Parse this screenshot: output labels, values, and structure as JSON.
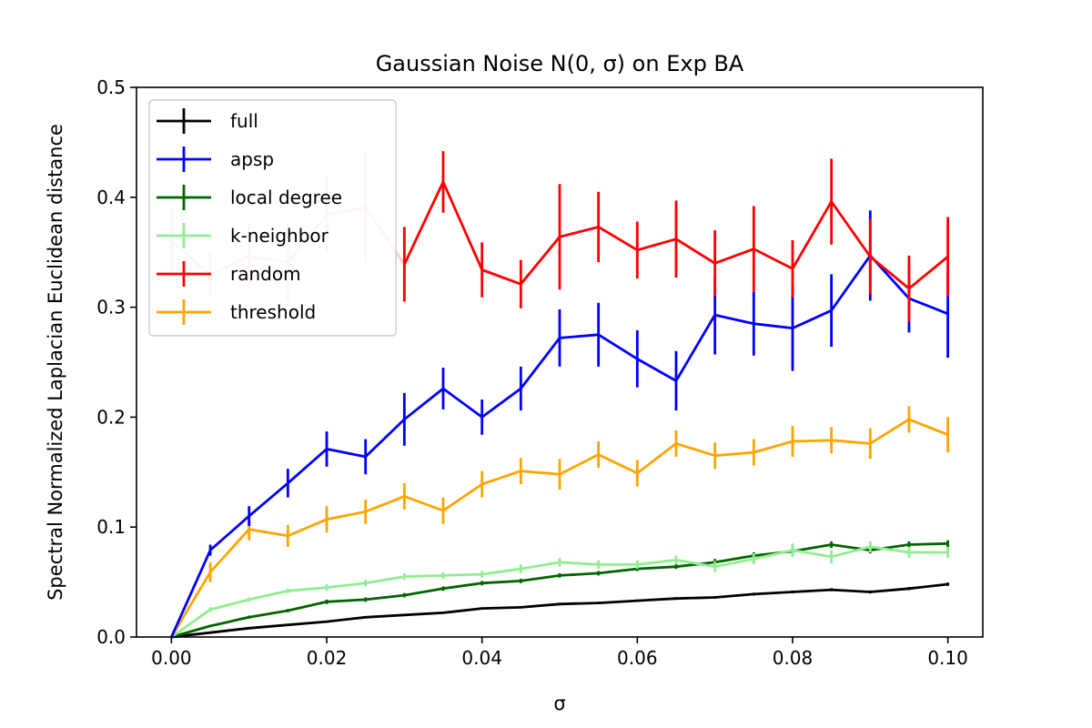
{
  "chart_data": {
    "type": "line",
    "title": "Gaussian Noise N(0, σ) on Exp BA",
    "xlabel": "σ",
    "ylabel": "Spectral Normalized Laplacian Euclidean distance",
    "xlim": [
      -0.0045,
      0.1045
    ],
    "ylim": [
      0,
      0.5
    ],
    "xticks": [
      0.0,
      0.02,
      0.04,
      0.06,
      0.08,
      0.1
    ],
    "xtick_labels": [
      "0.00",
      "0.02",
      "0.04",
      "0.06",
      "0.08",
      "0.10"
    ],
    "yticks": [
      0.0,
      0.1,
      0.2,
      0.3,
      0.4,
      0.5
    ],
    "ytick_labels": [
      "0.0",
      "0.1",
      "0.2",
      "0.3",
      "0.4",
      "0.5"
    ],
    "grid": false,
    "legend_position": "upper-left",
    "x": [
      0.0,
      0.005,
      0.01,
      0.015,
      0.02,
      0.025,
      0.03,
      0.035,
      0.04,
      0.045,
      0.05,
      0.055,
      0.06,
      0.065,
      0.07,
      0.075,
      0.08,
      0.085,
      0.09,
      0.095,
      0.1
    ],
    "series": [
      {
        "name": "full",
        "color": "#000000",
        "values": [
          0.0,
          0.004,
          0.008,
          0.011,
          0.014,
          0.018,
          0.02,
          0.022,
          0.026,
          0.027,
          0.03,
          0.031,
          0.033,
          0.035,
          0.036,
          0.039,
          0.041,
          0.043,
          0.041,
          0.044,
          0.048
        ],
        "errors": [
          0.0,
          0.0005,
          0.0006,
          0.0007,
          0.0008,
          0.0009,
          0.0009,
          0.001,
          0.001,
          0.001,
          0.0011,
          0.0011,
          0.0012,
          0.0012,
          0.0012,
          0.0013,
          0.0013,
          0.0014,
          0.0014,
          0.0014,
          0.0015
        ]
      },
      {
        "name": "apsp",
        "color": "#0000ff",
        "values": [
          0.0,
          0.079,
          0.11,
          0.14,
          0.171,
          0.164,
          0.198,
          0.226,
          0.2,
          0.226,
          0.272,
          0.275,
          0.253,
          0.233,
          0.293,
          0.285,
          0.281,
          0.297,
          0.347,
          0.308,
          0.294
        ],
        "errors": [
          0.0,
          0.005,
          0.009,
          0.013,
          0.016,
          0.016,
          0.024,
          0.019,
          0.016,
          0.02,
          0.026,
          0.029,
          0.026,
          0.027,
          0.036,
          0.029,
          0.039,
          0.033,
          0.041,
          0.031,
          0.04
        ]
      },
      {
        "name": "local degree",
        "color": "#006400",
        "values": [
          0.0,
          0.01,
          0.018,
          0.024,
          0.032,
          0.034,
          0.038,
          0.044,
          0.049,
          0.051,
          0.056,
          0.058,
          0.062,
          0.064,
          0.068,
          0.074,
          0.078,
          0.084,
          0.079,
          0.084,
          0.085
        ],
        "errors": [
          0.0,
          0.001,
          0.0015,
          0.0015,
          0.002,
          0.002,
          0.002,
          0.002,
          0.002,
          0.002,
          0.002,
          0.002,
          0.002,
          0.002,
          0.003,
          0.003,
          0.003,
          0.003,
          0.003,
          0.003,
          0.003
        ]
      },
      {
        "name": "k-neighbor",
        "color": "#90ee90",
        "values": [
          0.0,
          0.025,
          0.034,
          0.042,
          0.045,
          0.049,
          0.055,
          0.056,
          0.057,
          0.062,
          0.068,
          0.066,
          0.066,
          0.07,
          0.064,
          0.071,
          0.079,
          0.073,
          0.082,
          0.077,
          0.077
        ],
        "errors": [
          0.0,
          0.002,
          0.002,
          0.002,
          0.003,
          0.003,
          0.003,
          0.003,
          0.003,
          0.004,
          0.004,
          0.004,
          0.004,
          0.004,
          0.005,
          0.005,
          0.006,
          0.006,
          0.005,
          0.005,
          0.005
        ]
      },
      {
        "name": "random",
        "color": "#ff0000",
        "values": [
          0.0,
          0.0,
          0.0,
          0.0,
          0.0,
          0.0,
          0.339,
          0.414,
          0.334,
          0.321,
          0.364,
          0.373,
          0.352,
          0.362,
          0.34,
          0.353,
          0.335,
          0.396,
          0.346,
          0.317,
          0.346
        ],
        "errors": [
          0.0,
          0.0,
          0.0,
          0.0,
          0.0,
          0.0,
          0.034,
          0.028,
          0.025,
          0.022,
          0.048,
          0.032,
          0.026,
          0.035,
          0.03,
          0.039,
          0.026,
          0.039,
          0.034,
          0.03,
          0.036
        ],
        "start_index": 6
      },
      {
        "name": "threshold",
        "color": "#ffa500",
        "values": [
          0.0,
          0.059,
          0.098,
          0.092,
          0.107,
          0.114,
          0.128,
          0.115,
          0.139,
          0.151,
          0.148,
          0.166,
          0.149,
          0.176,
          0.165,
          0.168,
          0.178,
          0.179,
          0.176,
          0.198,
          0.184
        ],
        "errors": [
          0.0,
          0.009,
          0.01,
          0.01,
          0.012,
          0.011,
          0.012,
          0.012,
          0.012,
          0.012,
          0.014,
          0.012,
          0.012,
          0.012,
          0.012,
          0.012,
          0.014,
          0.012,
          0.014,
          0.012,
          0.016
        ]
      }
    ],
    "faded_segment": {
      "color": "#ffcccc",
      "values": [
        0.36,
        0.33,
        0.346,
        0.341,
        0.384,
        0.391,
        0.339
      ],
      "errors": [
        0.032,
        0.02,
        0.03,
        0.035,
        0.035,
        0.05,
        0.034
      ]
    }
  }
}
